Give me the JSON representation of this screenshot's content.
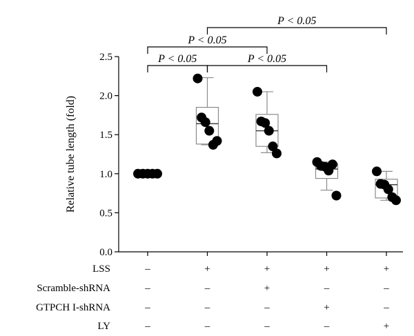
{
  "chart_data": {
    "type": "box",
    "ylabel": "Relative tube length (fold)",
    "ylim": [
      0.0,
      2.5
    ],
    "yticks": [
      "0.0",
      "0.5",
      "1.0",
      "1.5",
      "2.0",
      "2.5"
    ],
    "groups": [
      {
        "box": {
          "min": 1.0,
          "q1": 1.0,
          "median": 1.0,
          "q3": 1.0,
          "max": 1.0
        },
        "points": [
          1.0,
          1.0,
          1.0,
          1.0,
          1.0
        ]
      },
      {
        "box": {
          "min": 1.37,
          "q1": 1.38,
          "median": 1.64,
          "q3": 1.85,
          "max": 2.23
        },
        "points": [
          2.22,
          1.72,
          1.66,
          1.55,
          1.37,
          1.42
        ]
      },
      {
        "box": {
          "min": 1.27,
          "q1": 1.35,
          "median": 1.55,
          "q3": 1.76,
          "max": 2.05
        },
        "points": [
          2.05,
          1.67,
          1.65,
          1.55,
          1.35,
          1.26
        ]
      },
      {
        "box": {
          "min": 0.79,
          "q1": 0.94,
          "median": 1.06,
          "q3": 1.13,
          "max": 1.15
        },
        "points": [
          1.15,
          1.1,
          1.09,
          1.04,
          1.12,
          0.72
        ]
      },
      {
        "box": {
          "min": 0.66,
          "q1": 0.69,
          "median": 0.86,
          "q3": 0.93,
          "max": 1.03
        },
        "points": [
          1.03,
          0.87,
          0.86,
          0.8,
          0.7,
          0.66
        ]
      }
    ],
    "conditions": [
      {
        "label": "LSS",
        "values": [
          "–",
          "+",
          "+",
          "+",
          "+"
        ]
      },
      {
        "label": "Scramble-shRNA",
        "values": [
          "–",
          "–",
          "+",
          "–",
          "–"
        ]
      },
      {
        "label": "GTPCH I-shRNA",
        "values": [
          "–",
          "–",
          "–",
          "+",
          "–"
        ]
      },
      {
        "label": "LY",
        "values": [
          "–",
          "–",
          "–",
          "–",
          "+"
        ]
      }
    ],
    "comparisons": [
      {
        "from": 0,
        "to": 1,
        "label": "P < 0.05"
      },
      {
        "from": 1,
        "to": 3,
        "label": "P < 0.05"
      },
      {
        "from": 0,
        "to": 2,
        "label": "P < 0.05"
      },
      {
        "from": 1,
        "to": 4,
        "label": "P < 0.05"
      }
    ]
  }
}
